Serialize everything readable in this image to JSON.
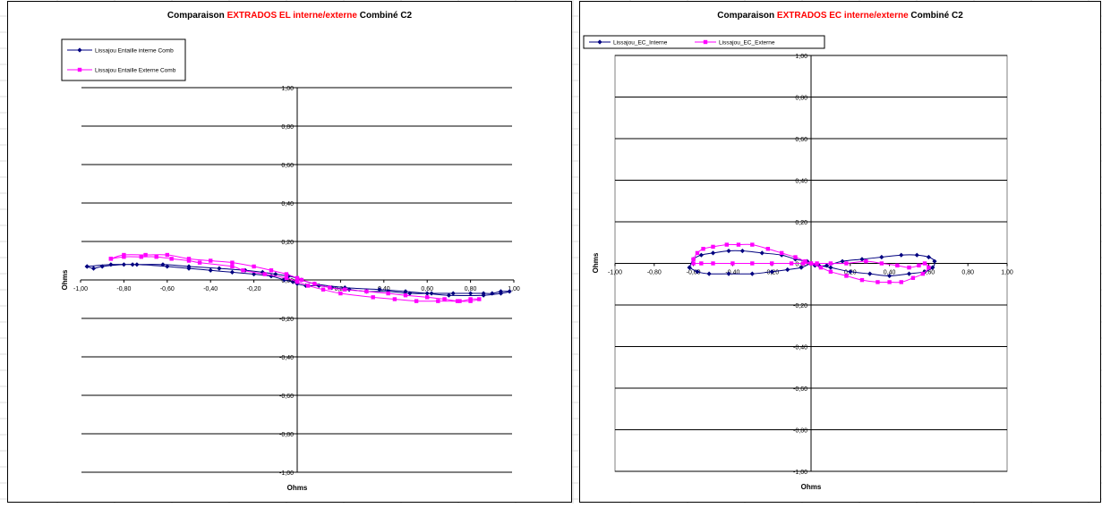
{
  "colors": {
    "series_interne": "#000080",
    "series_externe": "#ff00ff",
    "title_accent": "#ff0000",
    "gridline": "#000000"
  },
  "chart_data": [
    {
      "type": "scatter",
      "title_parts": {
        "prefix": "Comparaison ",
        "highlight": "EXTRADOS  EL interne/externe",
        "suffix": " Combiné C2"
      },
      "xlabel": "Ohms",
      "ylabel": "Ohms",
      "xlim": [
        -1.0,
        1.0
      ],
      "ylim": [
        -1.0,
        1.0
      ],
      "xticks": [
        -1.0,
        -0.8,
        -0.6,
        -0.4,
        -0.2,
        0.0,
        0.2,
        0.4,
        0.6,
        0.8,
        1.0
      ],
      "xtick_labels": [
        "-1,00",
        "-0,80",
        "-0,60",
        "-0,40",
        "-0,20",
        "0,00",
        "0,20",
        "0,40",
        "0,60",
        "0,80",
        "1,00"
      ],
      "yticks": [
        -1.0,
        -0.8,
        -0.6,
        -0.4,
        -0.2,
        0.0,
        0.2,
        0.4,
        0.6,
        0.8,
        1.0
      ],
      "ytick_labels": [
        "-1,00",
        "-0,80",
        "-0,60",
        "-0,40",
        "-0,20",
        "0,00",
        "0,20",
        "0,40",
        "0,60",
        "0,80",
        "1,00"
      ],
      "grid": "horizontal",
      "legend": "top-left",
      "series": [
        {
          "name": "Lissajou Entaille interne Comb",
          "color": "#000080",
          "marker": "diamond",
          "x": [
            -0.97,
            -0.94,
            -0.9,
            -0.8,
            -0.74,
            -0.6,
            -0.5,
            -0.4,
            -0.3,
            -0.2,
            -0.12,
            -0.06,
            -0.02,
            0.0,
            0.04,
            0.1,
            0.16,
            0.24,
            0.32,
            0.42,
            0.52,
            0.62,
            0.72,
            0.8,
            0.86,
            0.9,
            0.94,
            0.98,
            0.94,
            0.86,
            0.7,
            0.6,
            0.5,
            0.38,
            0.22,
            0.08,
            0.02,
            0.0,
            -0.04,
            -0.1,
            -0.16,
            -0.24,
            -0.36,
            -0.5,
            -0.62,
            -0.76,
            -0.86,
            -0.97
          ],
          "y": [
            0.07,
            0.06,
            0.07,
            0.08,
            0.08,
            0.07,
            0.06,
            0.05,
            0.04,
            0.03,
            0.02,
            0.0,
            -0.01,
            -0.02,
            -0.03,
            -0.03,
            -0.04,
            -0.05,
            -0.06,
            -0.06,
            -0.07,
            -0.07,
            -0.07,
            -0.07,
            -0.07,
            -0.07,
            -0.06,
            -0.06,
            -0.07,
            -0.08,
            -0.08,
            -0.07,
            -0.06,
            -0.05,
            -0.04,
            -0.02,
            0.0,
            0.01,
            0.02,
            0.03,
            0.04,
            0.05,
            0.06,
            0.07,
            0.08,
            0.08,
            0.08,
            0.07
          ]
        },
        {
          "name": "Lissajou Entaille Externe Comb",
          "color": "#ff00ff",
          "marker": "square",
          "x": [
            -0.86,
            -0.8,
            -0.72,
            -0.65,
            -0.58,
            -0.5,
            -0.45,
            -0.3,
            -0.25,
            -0.15,
            -0.05,
            0.0,
            0.05,
            0.12,
            0.2,
            0.35,
            0.45,
            0.55,
            0.65,
            0.75,
            0.8,
            0.84,
            0.8,
            0.74,
            0.68,
            0.6,
            0.5,
            0.42,
            0.32,
            0.22,
            0.15,
            0.08,
            0.02,
            0.0,
            -0.05,
            -0.12,
            -0.2,
            -0.3,
            -0.4,
            -0.5,
            -0.6,
            -0.7,
            -0.8,
            -0.86
          ],
          "y": [
            0.11,
            0.12,
            0.12,
            0.12,
            0.11,
            0.1,
            0.09,
            0.07,
            0.05,
            0.03,
            0.01,
            -0.01,
            -0.03,
            -0.05,
            -0.07,
            -0.09,
            -0.1,
            -0.11,
            -0.11,
            -0.11,
            -0.1,
            -0.1,
            -0.11,
            -0.11,
            -0.1,
            -0.09,
            -0.08,
            -0.07,
            -0.06,
            -0.05,
            -0.04,
            -0.02,
            0.0,
            0.01,
            0.03,
            0.05,
            0.07,
            0.09,
            0.1,
            0.11,
            0.13,
            0.13,
            0.13,
            0.11
          ]
        }
      ]
    },
    {
      "type": "scatter",
      "title_parts": {
        "prefix": "Comparaison ",
        "highlight": "EXTRADOS  EC interne/externe",
        "suffix": " Combiné C2"
      },
      "xlabel": "Ohms",
      "ylabel": "Ohms",
      "xlim": [
        -1.0,
        1.0
      ],
      "ylim": [
        -1.0,
        1.0
      ],
      "xticks": [
        -1.0,
        -0.8,
        -0.6,
        -0.4,
        -0.2,
        0.0,
        0.2,
        0.4,
        0.6,
        0.8,
        1.0
      ],
      "xtick_labels": [
        "-1,00",
        "-0,80",
        "-0,60",
        "-0,40",
        "-0,20",
        "0,00",
        "0,20",
        "0,40",
        "0,60",
        "0,80",
        "1,00"
      ],
      "yticks": [
        -1.0,
        -0.8,
        -0.6,
        -0.4,
        -0.2,
        0.0,
        0.2,
        0.4,
        0.6,
        0.8,
        1.0
      ],
      "ytick_labels": [
        "-1,00",
        "-0,80",
        "-0,60",
        "-0,40",
        "-0,20",
        "0,00",
        "0,20",
        "0,40",
        "0,60",
        "0,80",
        "1,00"
      ],
      "grid": "horizontal",
      "legend": "top-left",
      "series": [
        {
          "name": "Lissajou_EC_Interne",
          "color": "#000080",
          "marker": "diamond",
          "x": [
            -0.62,
            -0.6,
            -0.56,
            -0.5,
            -0.42,
            -0.35,
            -0.25,
            -0.15,
            -0.08,
            -0.02,
            0.0,
            0.04,
            0.1,
            0.2,
            0.3,
            0.4,
            0.5,
            0.58,
            0.62,
            0.63,
            0.6,
            0.54,
            0.46,
            0.36,
            0.26,
            0.16,
            0.08,
            0.02,
            0.0,
            -0.05,
            -0.12,
            -0.2,
            -0.3,
            -0.42,
            -0.52,
            -0.58,
            -0.62
          ],
          "y": [
            -0.02,
            0.02,
            0.04,
            0.05,
            0.06,
            0.06,
            0.05,
            0.04,
            0.02,
            0.01,
            0.0,
            -0.01,
            -0.02,
            -0.04,
            -0.05,
            -0.06,
            -0.05,
            -0.04,
            -0.02,
            0.01,
            0.03,
            0.04,
            0.04,
            0.03,
            0.02,
            0.01,
            -0.01,
            -0.01,
            0.0,
            -0.02,
            -0.03,
            -0.04,
            -0.05,
            -0.05,
            -0.05,
            -0.04,
            -0.02
          ]
        },
        {
          "name": "Lissajou_EC_Externe",
          "color": "#ff00ff",
          "marker": "square",
          "x": [
            -0.6,
            -0.58,
            -0.55,
            -0.5,
            -0.43,
            -0.37,
            -0.3,
            -0.22,
            -0.15,
            -0.08,
            -0.03,
            0.0,
            0.05,
            0.1,
            0.18,
            0.26,
            0.34,
            0.4,
            0.46,
            0.52,
            0.57,
            0.6,
            0.58,
            0.55,
            0.5,
            0.44,
            0.36,
            0.28,
            0.18,
            0.1,
            0.03,
            0.0,
            -0.04,
            -0.1,
            -0.2,
            -0.3,
            -0.4,
            -0.5,
            -0.56,
            -0.6
          ],
          "y": [
            0.02,
            0.05,
            0.07,
            0.08,
            0.09,
            0.09,
            0.09,
            0.07,
            0.05,
            0.03,
            0.01,
            0.0,
            -0.02,
            -0.04,
            -0.06,
            -0.08,
            -0.09,
            -0.09,
            -0.09,
            -0.07,
            -0.05,
            -0.02,
            0.0,
            -0.01,
            -0.02,
            -0.01,
            0.0,
            0.01,
            0.0,
            0.0,
            0.0,
            0.0,
            0.0,
            0.0,
            0.0,
            0.0,
            0.0,
            0.0,
            0.0,
            0.0
          ]
        }
      ]
    }
  ]
}
